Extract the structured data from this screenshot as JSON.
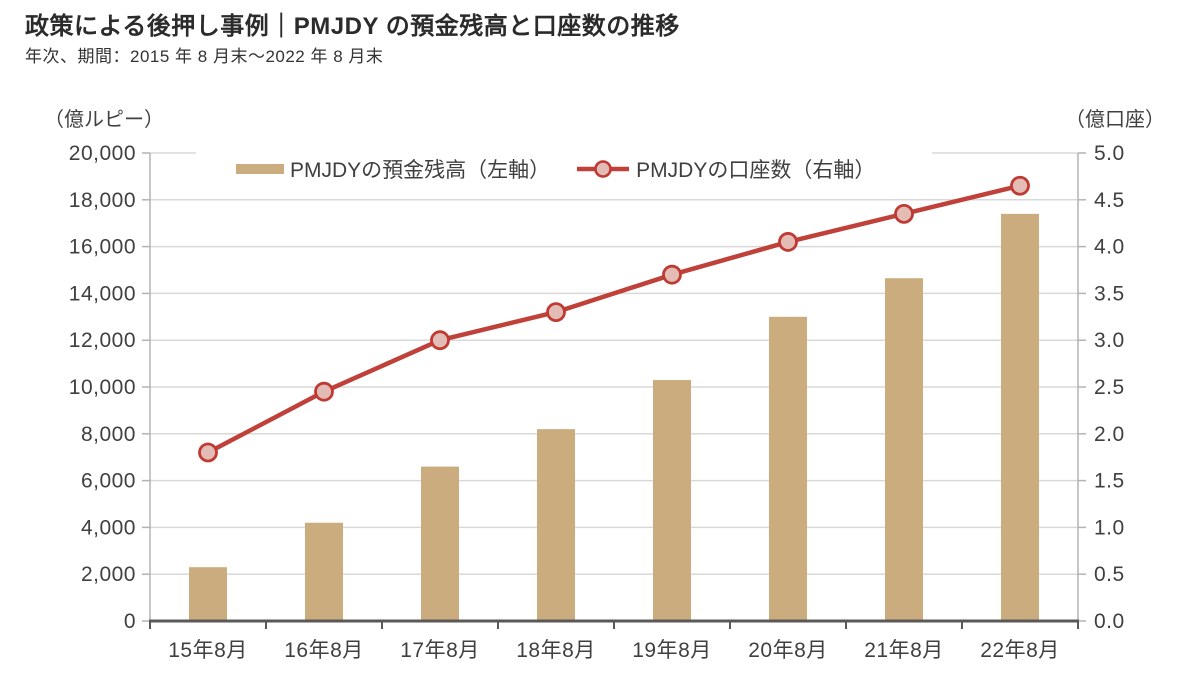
{
  "header": {
    "title": "政策による後押し事例｜PMJDY の預金残高と口座数の推移",
    "subtitle": "年次、期間：2015 年 8 月末～2022 年 8 月末"
  },
  "chart_data": {
    "type": "bar",
    "title": "PMJDY の預金残高と口座数の推移",
    "categories": [
      "15年8月",
      "16年8月",
      "17年8月",
      "18年8月",
      "19年8月",
      "20年8月",
      "21年8月",
      "22年8月"
    ],
    "series": [
      {
        "name": "PMJDYの預金残高（左軸）",
        "type": "bar",
        "axis": "left",
        "color": "#cbac7e",
        "values": [
          2300,
          4200,
          6600,
          8200,
          10300,
          13000,
          14650,
          17400
        ]
      },
      {
        "name": "PMJDYの口座数（右軸）",
        "type": "line",
        "axis": "right",
        "color": "#c0403a",
        "marker_fill": "#e3bcb6",
        "marker_stroke": "#bf3a33",
        "values": [
          1.8,
          2.45,
          3.0,
          3.3,
          3.7,
          4.05,
          4.35,
          4.65
        ]
      }
    ],
    "left_axis": {
      "unit": "（億ルピー）",
      "min": 0,
      "max": 20000,
      "step": 2000
    },
    "right_axis": {
      "unit": "（億口座）",
      "min": 0,
      "max": 5.0,
      "step": 0.5
    },
    "grid": true,
    "legend_position": "top"
  },
  "colors": {
    "grid": "#d9d9d9",
    "side_axis": "#b3b3b3",
    "bottom_axis": "#595959",
    "tick_text": "#404040",
    "title_text": "#2b2b2b"
  }
}
